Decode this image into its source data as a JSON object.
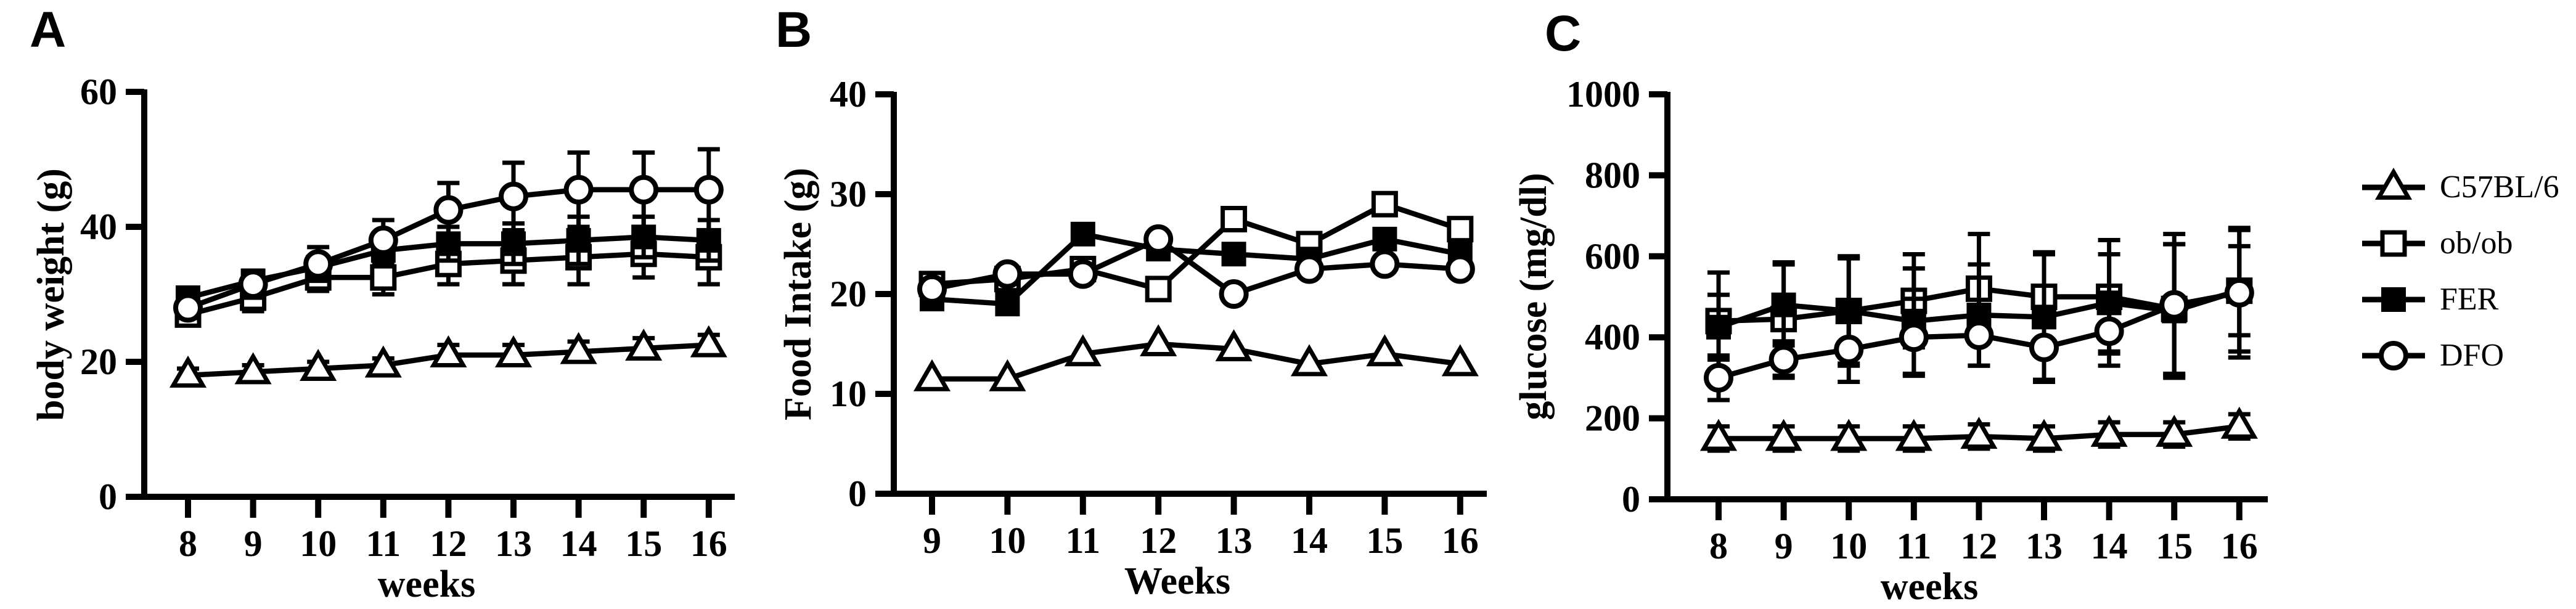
{
  "figure": {
    "background": "#ffffff",
    "ink": "#000000"
  },
  "legend": {
    "items": [
      {
        "label": "C57BL/6",
        "marker": "triangle-open"
      },
      {
        "label": "ob/ob",
        "marker": "square-open"
      },
      {
        "label": "FER",
        "marker": "square-filled"
      },
      {
        "label": "DFO",
        "marker": "circle-open"
      }
    ]
  },
  "chart_data": [
    {
      "panel_label": "A",
      "type": "line",
      "title": "",
      "xlabel": "weeks",
      "ylabel": "body weight (g)",
      "x": [
        8,
        9,
        10,
        11,
        12,
        13,
        14,
        15,
        16
      ],
      "ylim": [
        0,
        60
      ],
      "yticks": [
        0,
        20,
        40,
        60
      ],
      "grid": false,
      "legend_position": "outside-right",
      "error_bars": true,
      "series": [
        {
          "name": "C57BL/6",
          "marker": "triangle-open",
          "values": [
            18,
            18.5,
            19,
            19.5,
            21,
            21,
            21.5,
            22,
            22.5
          ],
          "errors": [
            1,
            1,
            1,
            1,
            1.5,
            1.5,
            1.5,
            1.5,
            1.5
          ]
        },
        {
          "name": "ob/ob",
          "marker": "square-open",
          "values": [
            27,
            29.5,
            32.5,
            32.5,
            34.5,
            35,
            35.5,
            36,
            35.5
          ],
          "errors": [
            1.5,
            2,
            2,
            2.5,
            3,
            3.5,
            4,
            3.5,
            4
          ]
        },
        {
          "name": "FER",
          "marker": "square-filled",
          "values": [
            29.5,
            32,
            34,
            36.5,
            37.5,
            37.5,
            38,
            38.5,
            38
          ],
          "errors": [
            1.5,
            1.5,
            1.5,
            2,
            2.5,
            3,
            3.5,
            3,
            3
          ]
        },
        {
          "name": "DFO",
          "marker": "circle-open",
          "values": [
            28,
            31.5,
            34.5,
            38,
            42.5,
            44.5,
            45.5,
            45.5,
            45.5
          ],
          "errors": [
            1.5,
            2,
            2.5,
            3,
            4,
            5,
            5.5,
            5.5,
            6
          ]
        }
      ]
    },
    {
      "panel_label": "B",
      "type": "line",
      "title": "",
      "xlabel": "Weeks",
      "ylabel": "Food Intake (g)",
      "x": [
        9,
        10,
        11,
        12,
        13,
        14,
        15,
        16
      ],
      "ylim": [
        0,
        40
      ],
      "yticks": [
        0,
        10,
        20,
        30,
        40
      ],
      "grid": false,
      "legend_position": "outside-right",
      "error_bars": false,
      "series": [
        {
          "name": "C57BL/6",
          "marker": "triangle-open",
          "values": [
            11.5,
            11.5,
            14,
            15,
            14.5,
            13,
            14,
            13
          ]
        },
        {
          "name": "ob/ob",
          "marker": "square-open",
          "values": [
            21,
            21.5,
            22.5,
            20.5,
            27.5,
            25,
            29,
            26.5
          ]
        },
        {
          "name": "FER",
          "marker": "square-filled",
          "values": [
            19.5,
            19,
            26,
            24.5,
            24,
            23.5,
            25.5,
            24
          ]
        },
        {
          "name": "DFO",
          "marker": "circle-open",
          "values": [
            20.5,
            22,
            22,
            25.5,
            20,
            22.5,
            23,
            22.5
          ]
        }
      ]
    },
    {
      "panel_label": "C",
      "type": "line",
      "title": "",
      "xlabel": "weeks",
      "ylabel": "glucose (mg/dl)",
      "x": [
        8,
        9,
        10,
        11,
        12,
        13,
        14,
        15,
        16
      ],
      "ylim": [
        0,
        1000
      ],
      "yticks": [
        0,
        200,
        400,
        600,
        800,
        1000
      ],
      "grid": false,
      "legend_position": "outside-right",
      "error_bars": true,
      "series": [
        {
          "name": "C57BL/6",
          "marker": "triangle-open",
          "values": [
            150,
            150,
            150,
            150,
            155,
            150,
            160,
            160,
            180
          ],
          "errors": [
            30,
            30,
            30,
            30,
            30,
            30,
            30,
            30,
            30
          ]
        },
        {
          "name": "ob/ob",
          "marker": "square-open",
          "values": [
            440,
            445,
            465,
            490,
            520,
            500,
            500,
            470,
            515
          ],
          "errors": [
            120,
            140,
            135,
            115,
            135,
            110,
            140,
            160,
            110
          ]
        },
        {
          "name": "FER",
          "marker": "square-filled",
          "values": [
            425,
            480,
            465,
            440,
            455,
            450,
            485,
            465,
            515
          ],
          "errors": [
            80,
            100,
            130,
            130,
            125,
            155,
            120,
            165,
            150
          ]
        },
        {
          "name": "DFO",
          "marker": "circle-open",
          "values": [
            300,
            345,
            370,
            400,
            405,
            375,
            415,
            480,
            510
          ],
          "errors": [
            55,
            45,
            80,
            95,
            75,
            85,
            85,
            175,
            160
          ]
        }
      ]
    }
  ]
}
